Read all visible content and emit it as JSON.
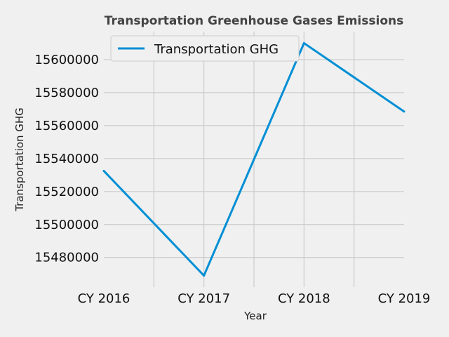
{
  "chart_data": {
    "type": "line",
    "title": "Transportation Greenhouse Gases Emissions",
    "xlabel": "Year",
    "ylabel": "Transportation GHG",
    "categories": [
      "CY 2016",
      "CY 2017",
      "CY 2018",
      "CY 2019"
    ],
    "series": [
      {
        "name": "Transportation GHG",
        "values": [
          15532500,
          15469000,
          15610000,
          15568500
        ],
        "color": "#008fd5"
      }
    ],
    "yticks": [
      "15480000",
      "15500000",
      "15520000",
      "15540000",
      "15560000",
      "15580000",
      "15600000"
    ],
    "ylim": [
      15462000,
      15617000
    ],
    "grid": true,
    "legend_position": "top-left"
  }
}
